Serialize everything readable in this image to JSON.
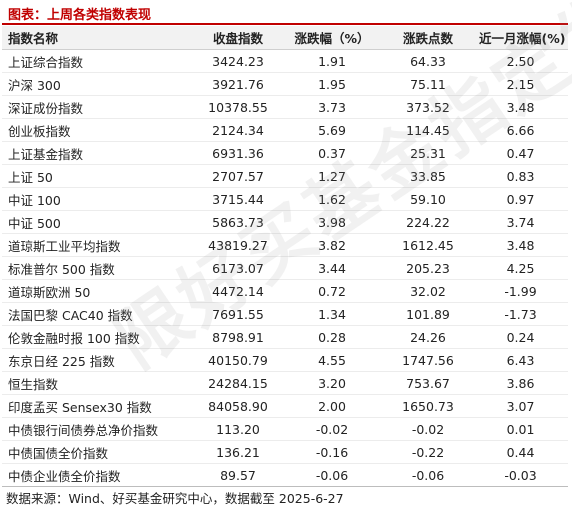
{
  "title": "图表：上周各类指数表现",
  "table": {
    "headers": [
      "指数名称",
      "收盘指数",
      "涨跌幅（%）",
      "涨跌点数",
      "近一月涨幅(%)"
    ],
    "rows": [
      [
        "上证综合指数",
        "3424.23",
        "1.91",
        "64.33",
        "2.50"
      ],
      [
        "沪深 300",
        "3921.76",
        "1.95",
        "75.11",
        "2.15"
      ],
      [
        "深证成份指数",
        "10378.55",
        "3.73",
        "373.52",
        "3.48"
      ],
      [
        "创业板指数",
        "2124.34",
        "5.69",
        "114.45",
        "6.66"
      ],
      [
        "上证基金指数",
        "6931.36",
        "0.37",
        "25.31",
        "0.47"
      ],
      [
        "上证 50",
        "2707.57",
        "1.27",
        "33.85",
        "0.83"
      ],
      [
        "中证 100",
        "3715.44",
        "1.62",
        "59.10",
        "0.97"
      ],
      [
        "中证 500",
        "5863.73",
        "3.98",
        "224.22",
        "3.74"
      ],
      [
        "道琼斯工业平均指数",
        "43819.27",
        "3.82",
        "1612.45",
        "3.48"
      ],
      [
        "标准普尔 500 指数",
        "6173.07",
        "3.44",
        "205.23",
        "4.25"
      ],
      [
        "道琼斯欧洲 50",
        "4472.14",
        "0.72",
        "32.02",
        "-1.99"
      ],
      [
        "法国巴黎 CAC40 指数",
        "7691.55",
        "1.34",
        "101.89",
        "-1.73"
      ],
      [
        "伦敦金融时报 100 指数",
        "8798.91",
        "0.28",
        "24.26",
        "0.24"
      ],
      [
        "东京日经 225 指数",
        "40150.79",
        "4.55",
        "1747.56",
        "6.43"
      ],
      [
        "恒生指数",
        "24284.15",
        "3.20",
        "753.67",
        "3.86"
      ],
      [
        "印度孟买 Sensex30 指数",
        "84058.90",
        "2.00",
        "1650.73",
        "3.07"
      ],
      [
        "中债银行间债券总净价指数",
        "113.20",
        "-0.02",
        "-0.02",
        "0.01"
      ],
      [
        "中债国债全价指数",
        "136.21",
        "-0.16",
        "-0.22",
        "0.44"
      ],
      [
        "中债企业债全价指数",
        "89.57",
        "-0.06",
        "-0.06",
        "-0.03"
      ]
    ]
  },
  "footer": "数据来源：Wind、好买基金研究中心，数据截至 2025-6-27",
  "watermark": "限好买基金指定发"
}
